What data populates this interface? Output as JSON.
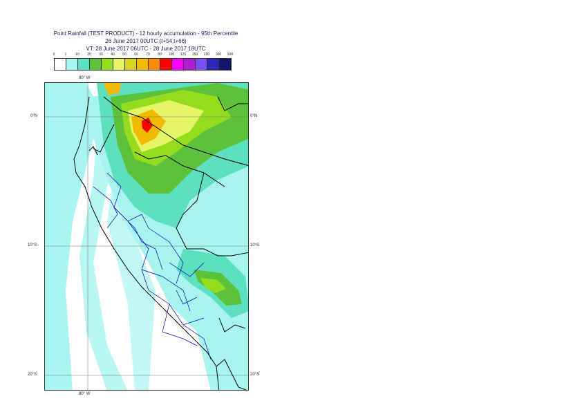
{
  "header": {
    "title_line1": "Point Rainfall (TEST PRODUCT) - 12 hourly accumulation - 95th Percentile",
    "title_line2": "26 June 2017 00UTC (t+54,t+66)",
    "title_line3": "VT: 28 June 2017 06UTC - 28 June 2017 18UTC"
  },
  "legend": {
    "ticks": [
      "0",
      "1",
      "10",
      "20",
      "30",
      "40",
      "50",
      "60",
      "70",
      "80",
      "100",
      "125",
      "150",
      "200",
      "300",
      "500"
    ],
    "colors": [
      "#ffffff",
      "#a8f5f0",
      "#5ee0c0",
      "#5cc23c",
      "#96dc1e",
      "#e6f566",
      "#d6d41e",
      "#f2ba00",
      "#ff8c00",
      "#ff0000",
      "#ff00ff",
      "#b01ed2",
      "#7850f0",
      "#2828b4",
      "#14146e"
    ]
  },
  "map": {
    "lon_label_top": "80° W",
    "lon_label_bottom": "80° W",
    "lat_labels": [
      "0°N",
      "10°S",
      "20°S"
    ],
    "colors": {
      "ocean_light": "#ffffff",
      "cyan": "#a8f5f0",
      "teal": "#5ee0c0",
      "green": "#5cc23c",
      "lime": "#96dc1e",
      "yellow": "#e6f566",
      "orange": "#f2ba00",
      "red": "#ff0000",
      "border_country": "#000000",
      "border_region": "#0000c8",
      "grid": "#7a7a7a"
    }
  }
}
